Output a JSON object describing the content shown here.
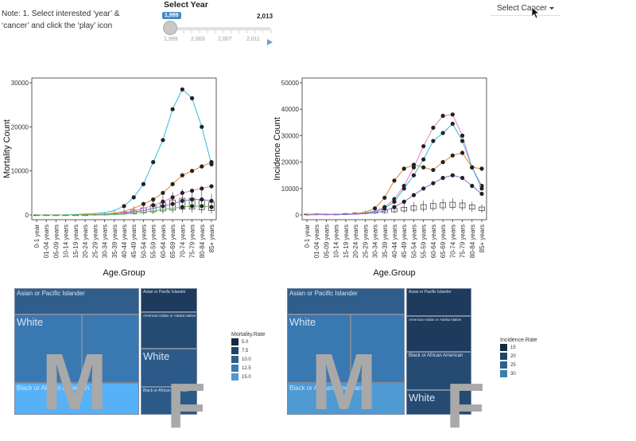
{
  "note": "Note: 1. Select interested ‘year’ & ‘cancer’ and click the ‘play’ icon",
  "slider": {
    "title": "Select Year",
    "min_badge": "1,999",
    "max_label": "2,013",
    "ticks": [
      "1,999",
      "2,003",
      "2,007",
      "2,011"
    ],
    "value": "1,999"
  },
  "cancer_select": {
    "label": "Select Cancer"
  },
  "colors": {
    "treemap_dark": "#1e3a5c",
    "treemap_mid": "#2f5a86",
    "treemap_light": "#4f8fc4",
    "treemap_brightest": "#56b1f7",
    "letter": "#a9a9a9"
  },
  "chart_data": [
    {
      "type": "line",
      "xlabel": "Age.Group",
      "ylabel": "Mortality Count",
      "ylim": [
        0,
        30000
      ],
      "yticks": [
        "0",
        "10000",
        "20000",
        "30000"
      ],
      "categories": [
        "0-1 year",
        "01-04 years",
        "05-09 years",
        "10-14 years",
        "15-19 years",
        "20-24 years",
        "25-29 years",
        "30-34 years",
        "35-39 years",
        "40-44 years",
        "45-49 years",
        "50-54 years",
        "55-59 years",
        "60-64 years",
        "65-69 years",
        "70-74 years",
        "75-79 years",
        "80-84 years",
        "85+ years"
      ],
      "series": [
        {
          "color": "#35b9d8",
          "values": [
            0,
            0,
            0,
            0,
            100,
            200,
            300,
            500,
            1000,
            2000,
            4000,
            7000,
            12000,
            17000,
            24000,
            28500,
            26500,
            20000,
            11500
          ]
        },
        {
          "color": "#e08a2a",
          "values": [
            0,
            0,
            0,
            0,
            0,
            100,
            100,
            200,
            400,
            800,
            1500,
            2500,
            3500,
            5000,
            7000,
            9000,
            10000,
            11000,
            12000
          ]
        },
        {
          "color": "#f07ac8",
          "values": [
            0,
            0,
            0,
            0,
            0,
            0,
            0,
            100,
            200,
            500,
            900,
            1500,
            2200,
            3000,
            4000,
            5000,
            5500,
            6000,
            6500
          ]
        },
        {
          "color": "#8a6fd8",
          "values": [
            0,
            0,
            0,
            0,
            0,
            0,
            0,
            100,
            200,
            400,
            700,
            1000,
            1500,
            2000,
            2500,
            3200,
            3500,
            3500,
            3200
          ]
        },
        {
          "color": "#5fbf5f",
          "values": [
            0,
            0,
            0,
            0,
            0,
            0,
            0,
            0,
            100,
            200,
            400,
            600,
            900,
            1200,
            1500,
            1800,
            2000,
            2000,
            1800
          ]
        }
      ],
      "box": {
        "lows": [
          0,
          0,
          0,
          0,
          0,
          0,
          0,
          0,
          0,
          0,
          0,
          100,
          200,
          300,
          400,
          500,
          500,
          400,
          300
        ],
        "q1": [
          0,
          0,
          0,
          0,
          0,
          0,
          0,
          0,
          100,
          200,
          300,
          500,
          700,
          900,
          1100,
          1300,
          1300,
          1200,
          1000
        ],
        "q3": [
          0,
          0,
          0,
          0,
          0,
          0,
          100,
          200,
          400,
          700,
          1100,
          1600,
          2200,
          2800,
          3400,
          3800,
          3800,
          3400,
          2900
        ],
        "highs": [
          0,
          0,
          0,
          0,
          100,
          100,
          200,
          400,
          800,
          1300,
          2000,
          2800,
          3600,
          4400,
          5200,
          5900,
          6000,
          5500,
          4800
        ]
      }
    },
    {
      "type": "line",
      "xlabel": "Age.Group",
      "ylabel": "Incidence Count",
      "ylim": [
        0,
        50000
      ],
      "yticks": [
        "0",
        "10000",
        "20000",
        "30000",
        "40000",
        "50000"
      ],
      "categories": [
        "0-1 year",
        "01-04 years",
        "05-09 years",
        "10-14 years",
        "15-19 years",
        "20-24 years",
        "25-29 years",
        "30-34 years",
        "35-39 years",
        "40-44 years",
        "45-49 years",
        "50-54 years",
        "55-59 years",
        "60-64 years",
        "65-69 years",
        "70-74 years",
        "75-79 years",
        "80-84 years",
        "85+ years"
      ],
      "series": [
        {
          "color": "#f07ac8",
          "values": [
            200,
            400,
            300,
            200,
            300,
            500,
            800,
            1500,
            3000,
            6000,
            11000,
            18000,
            26000,
            33000,
            37500,
            38000,
            30000,
            18000,
            11000
          ]
        },
        {
          "color": "#35b9d8",
          "values": [
            100,
            300,
            200,
            200,
            300,
            400,
            600,
            1200,
            2500,
            5000,
            10000,
            15000,
            21000,
            28000,
            31000,
            34500,
            28000,
            18000,
            10000
          ]
        },
        {
          "color": "#e08a2a",
          "values": [
            100,
            200,
            200,
            200,
            300,
            500,
            1000,
            2500,
            6500,
            13000,
            17500,
            19000,
            18000,
            17000,
            20000,
            22500,
            23500,
            18000,
            17500
          ]
        },
        {
          "color": "#8a6fd8",
          "values": [
            0,
            100,
            100,
            100,
            200,
            300,
            500,
            800,
            1500,
            3000,
            5000,
            7500,
            10000,
            12000,
            14000,
            15000,
            14000,
            11000,
            8000
          ]
        }
      ],
      "box": {
        "lows": [
          0,
          0,
          0,
          0,
          0,
          100,
          200,
          300,
          400,
          600,
          800,
          1000,
          1200,
          1400,
          1600,
          1800,
          1600,
          1200,
          800
        ],
        "q1": [
          100,
          100,
          100,
          100,
          200,
          300,
          500,
          700,
          900,
          1200,
          1500,
          1800,
          2100,
          2400,
          2700,
          2900,
          2700,
          2200,
          1600
        ],
        "q3": [
          300,
          400,
          300,
          300,
          500,
          700,
          1000,
          1400,
          1900,
          2400,
          2900,
          3400,
          3900,
          4300,
          4600,
          4800,
          4500,
          3800,
          3000
        ],
        "highs": [
          600,
          800,
          600,
          600,
          900,
          1200,
          1700,
          2300,
          3000,
          3700,
          4300,
          4900,
          5400,
          5800,
          6100,
          6300,
          5900,
          5000,
          4000
        ]
      }
    }
  ],
  "treemaps": [
    {
      "rects": [
        {
          "label": "Asian or Pacific Islander",
          "size": "small"
        },
        {
          "label": "White",
          "size": "large"
        },
        {
          "label": "",
          "size": "tiny"
        },
        {
          "label": "Black or African American",
          "size": "small"
        },
        {
          "label": "Asian or Pacific Islander",
          "size": "tiny"
        },
        {
          "label": "American Indian or Alaska Native",
          "size": "tiny"
        },
        {
          "label": "White",
          "size": "large"
        },
        {
          "label": "Black or African American",
          "size": "tiny"
        }
      ],
      "letters": [
        "M",
        "F"
      ],
      "legend": {
        "title": "Mortality.Rate",
        "items": [
          {
            "label": "5.0",
            "color": "#132b43"
          },
          {
            "label": "7.5",
            "color": "#1f4564"
          },
          {
            "label": "10.0",
            "color": "#2d6087"
          },
          {
            "label": "12.5",
            "color": "#3c7dac"
          },
          {
            "label": "15.0",
            "color": "#4f9ad3"
          }
        ]
      }
    },
    {
      "rects": [
        {
          "label": "Asian or Pacific Islander",
          "size": "small"
        },
        {
          "label": "White",
          "size": "large"
        },
        {
          "label": "",
          "size": "tiny"
        },
        {
          "label": "Black or African American",
          "size": "small"
        },
        {
          "label": "Asian or Pacific Islander",
          "size": "tiny"
        },
        {
          "label": "American Indian or Alaska Native",
          "size": "tiny"
        },
        {
          "label": "Black or African American",
          "size": "tiny"
        },
        {
          "label": "White",
          "size": "large"
        }
      ],
      "letters": [
        "M",
        "F"
      ],
      "legend": {
        "title": "Incidence.Rate",
        "items": [
          {
            "label": "15",
            "color": "#132b43"
          },
          {
            "label": "20",
            "color": "#1f4564"
          },
          {
            "label": "25",
            "color": "#2d6087"
          },
          {
            "label": "30",
            "color": "#3c7dac"
          }
        ]
      }
    }
  ]
}
